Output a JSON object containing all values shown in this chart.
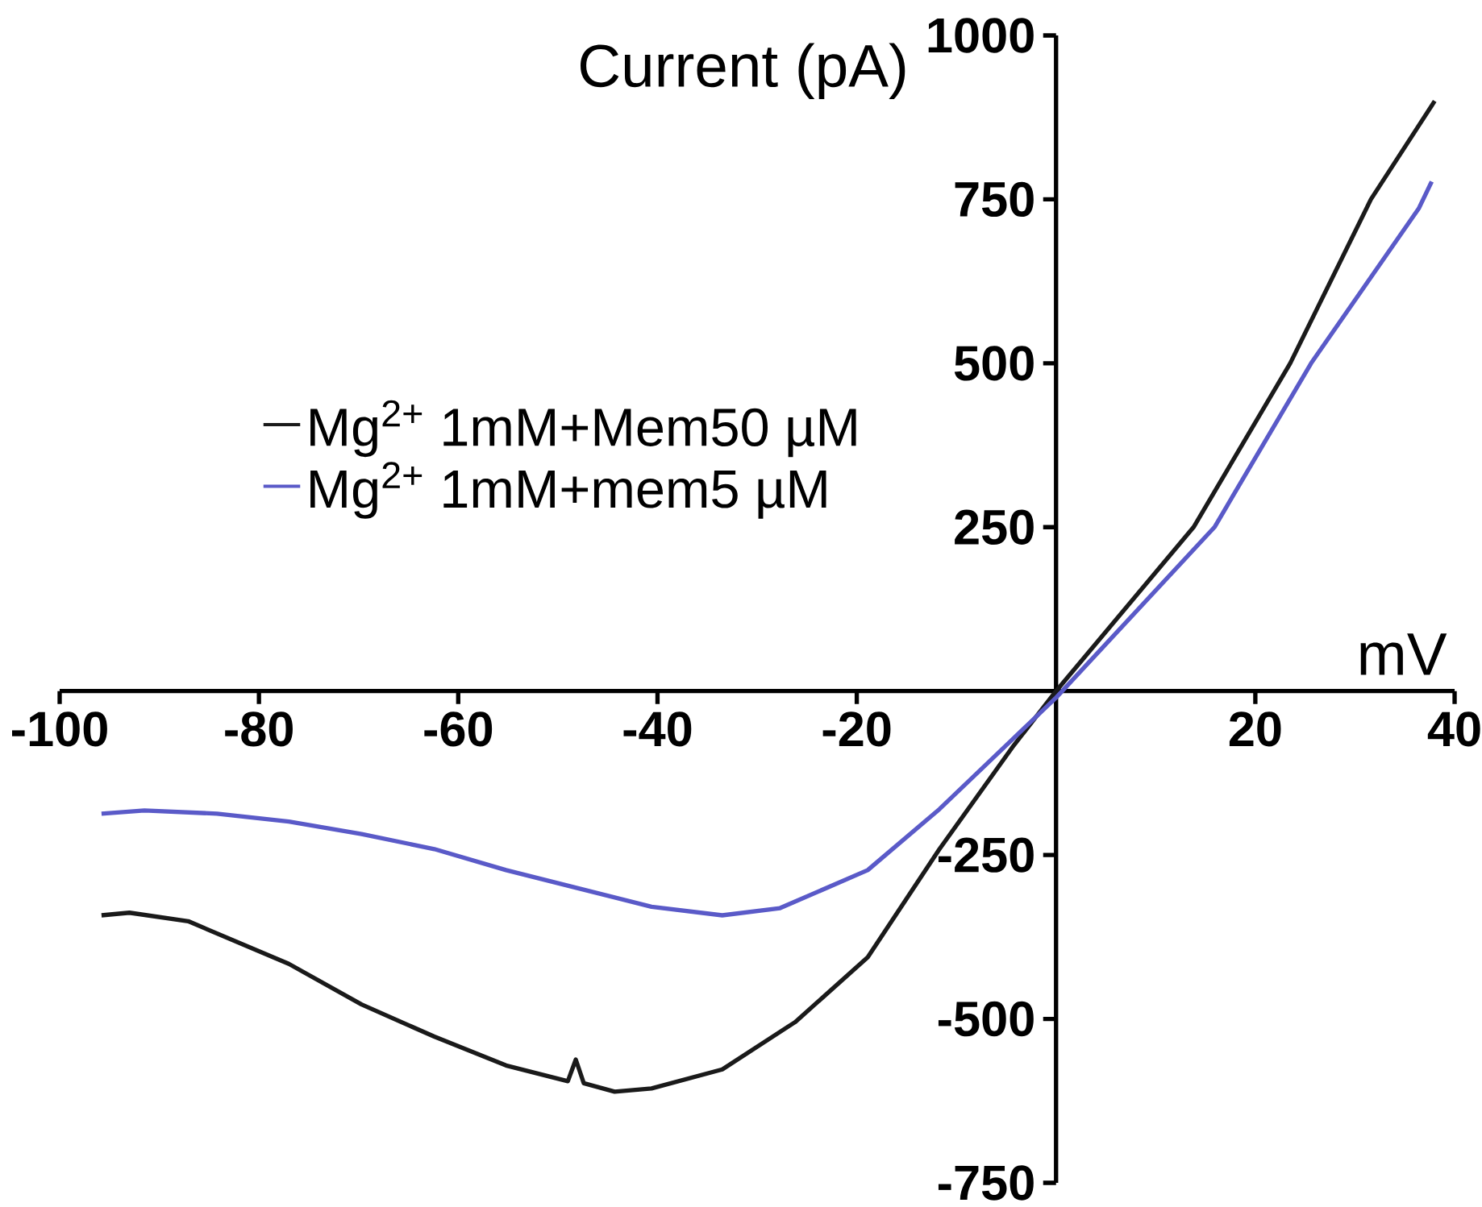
{
  "chart_data": {
    "type": "line",
    "xlabel": "mV",
    "ylabel": "Current (pA)",
    "xlim": [
      -100,
      40
    ],
    "ylim": [
      -750,
      1000
    ],
    "xticks": [
      -100,
      -80,
      -60,
      -40,
      -20,
      20,
      40
    ],
    "yticks": [
      -750,
      -500,
      -250,
      250,
      500,
      750,
      1000
    ],
    "grid": false,
    "legend": "top left",
    "marker": "none",
    "line_style": "solid",
    "series": [
      {
        "name": "Mg$^{2+}$ 1mM+Mem50 µM",
        "color": "#1a1a1a",
        "x": [
          -95.8,
          -93,
          -87.1,
          -77,
          -69.7,
          -62.4,
          -55.2,
          -49,
          -48.2,
          -47.4,
          -44.3,
          -40.6,
          -33.5,
          -26.2,
          -18.9,
          -11.7,
          -4.4,
          0,
          13.8,
          23.5,
          31.6,
          38
        ],
        "values": [
          -342,
          -338,
          -351,
          -416,
          -478,
          -527,
          -571,
          -595,
          -562,
          -598,
          -611,
          -606,
          -577,
          -505,
          -406,
          -241,
          -86,
          0,
          250,
          500,
          750,
          900
        ]
      },
      {
        "name": "Mg$^{2+}$ 1mM+mem5 µM",
        "color": "#5a5ac8",
        "x": [
          -95.8,
          -91.5,
          -84.2,
          -77,
          -69.7,
          -62.4,
          -55.2,
          -47.9,
          -40.6,
          -33.5,
          -27.7,
          -18.9,
          -11.7,
          -4.4,
          0,
          15.9,
          25.6,
          36.4,
          37.7
        ],
        "values": [
          -187,
          -182,
          -187,
          -199,
          -218,
          -241,
          -273,
          -301,
          -329,
          -342,
          -331,
          -273,
          -180,
          -74,
          -10,
          250,
          500,
          736,
          777
        ]
      }
    ]
  }
}
